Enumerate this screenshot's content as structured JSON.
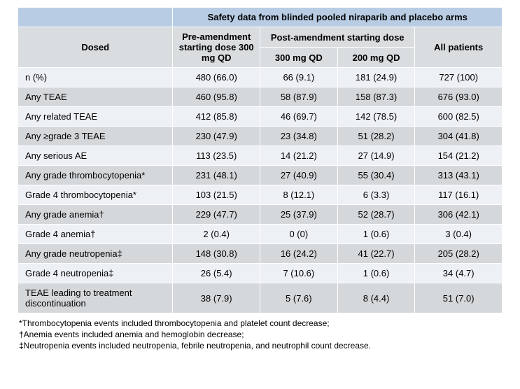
{
  "title": "Safety data from blinded pooled niraparib and placebo arms",
  "header": {
    "dosed": "Dosed",
    "pre": "Pre-amendment starting dose 300 mg QD",
    "post": "Post-amendment starting dose",
    "post300": "300 mg QD",
    "post200": "200 mg QD",
    "all": "All patients"
  },
  "rows": [
    {
      "label": "n (%)",
      "pre": "480 (66.0)",
      "p300": "66 (9.1)",
      "p200": "181 (24.9)",
      "all": "727 (100)"
    },
    {
      "label": "Any TEAE",
      "pre": "460 (95.8)",
      "p300": "58 (87.9)",
      "p200": "158 (87.3)",
      "all": "676 (93.0)"
    },
    {
      "label": "Any related TEAE",
      "pre": "412 (85.8)",
      "p300": "46 (69.7)",
      "p200": "142 (78.5)",
      "all": "600 (82.5)"
    },
    {
      "label": "Any ≥grade 3 TEAE",
      "pre": "230 (47.9)",
      "p300": "23 (34.8)",
      "p200": "51 (28.2)",
      "all": "304 (41.8)"
    },
    {
      "label": "Any serious AE",
      "pre": "113 (23.5)",
      "p300": "14 (21.2)",
      "p200": "27 (14.9)",
      "all": "154 (21.2)"
    },
    {
      "label": "Any grade thrombocytopenia*",
      "pre": "231 (48.1)",
      "p300": "27 (40.9)",
      "p200": "55 (30.4)",
      "all": "313 (43.1)"
    },
    {
      "label": "Grade 4 thrombocytopenia*",
      "pre": "103 (21.5)",
      "p300": "8 (12.1)",
      "p200": "6 (3.3)",
      "all": "117 (16.1)"
    },
    {
      "label": "Any grade anemia†",
      "pre": "229 (47.7)",
      "p300": "25 (37.9)",
      "p200": "52 (28.7)",
      "all": "306 (42.1)"
    },
    {
      "label": "Grade 4 anemia†",
      "pre": "2 (0.4)",
      "p300": "0 (0)",
      "p200": "1 (0.6)",
      "all": "3 (0.4)"
    },
    {
      "label": "Any grade neutropenia‡",
      "pre": "148 (30.8)",
      "p300": "16 (24.2)",
      "p200": "41 (22.7)",
      "all": "205 (28.2)"
    },
    {
      "label": "Grade 4 neutropenia‡",
      "pre": "26 (5.4)",
      "p300": "7 (10.6)",
      "p200": "1 (0.6)",
      "all": "34 (4.7)"
    },
    {
      "label": "TEAE leading to treatment discontinuation",
      "pre": "38 (7.9)",
      "p300": "5 (7.6)",
      "p200": "8 (4.4)",
      "all": "51 (7.0)"
    }
  ],
  "footnotes": {
    "f1": "*Thrombocytopenia events included thrombocytopenia and platelet count decrease;",
    "f2": "†Anemia events included anemia and hemoglobin decrease;",
    "f3": "‡Neutropenia events included neutropenia, febrile neutropenia, and neutrophil count decrease."
  },
  "style": {
    "header_bg": "#b8cce4",
    "subheader_bg": "#d9dde0",
    "band_light": "#edf0f4",
    "band_dark": "#d5d8db",
    "border_color": "#ffffff",
    "font_size_body": 13,
    "font_size_footnote": 12,
    "col_widths_pct": [
      32,
      18,
      16,
      16,
      18
    ]
  }
}
